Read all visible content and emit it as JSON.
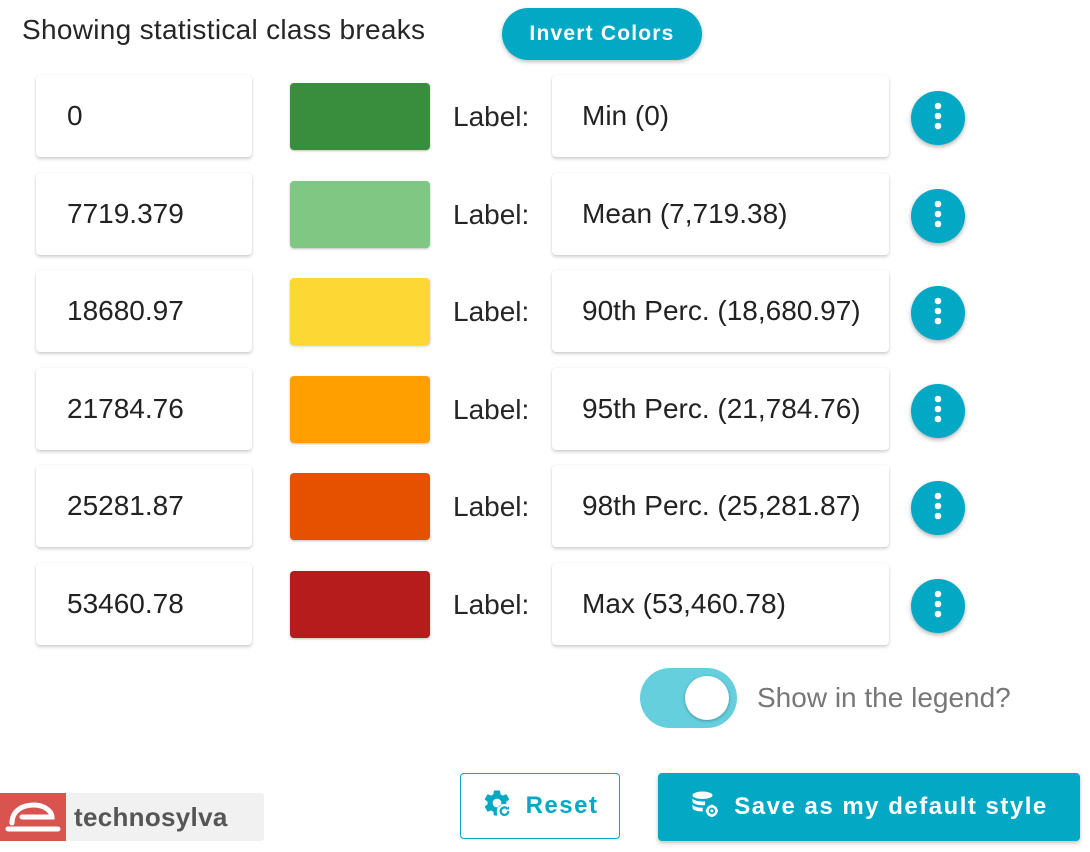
{
  "header": {
    "title": "Showing statistical class breaks",
    "invert_colors_label": "Invert Colors"
  },
  "breaks": [
    {
      "value": "0",
      "color": "#388e3c",
      "label_prefix": "Label:",
      "label": "Min (0)"
    },
    {
      "value": "7719.379",
      "color": "#81c784",
      "label_prefix": "Label:",
      "label": "Mean (7,719.38)"
    },
    {
      "value": "18680.97",
      "color": "#fdd835",
      "label_prefix": "Label:",
      "label": "90th Perc. (18,680.97)"
    },
    {
      "value": "21784.76",
      "color": "#ffa000",
      "label_prefix": "Label:",
      "label": "95th Perc. (21,784.76)"
    },
    {
      "value": "25281.87",
      "color": "#e65100",
      "label_prefix": "Label:",
      "label": "98th Perc. (25,281.87)"
    },
    {
      "value": "53460.78",
      "color": "#b71c1c",
      "label_prefix": "Label:",
      "label": "Max (53,460.78)"
    }
  ],
  "legend_toggle": {
    "label": "Show in the legend?",
    "checked": true
  },
  "footer": {
    "logo_text": "technosylva",
    "reset_label": "Reset",
    "save_label": "Save as my default style"
  },
  "colors": {
    "accent": "#03a8c4",
    "toggle_track": "#66cfde"
  },
  "icons": {
    "menu": "more-vert-icon",
    "reset": "gear-refresh-icon",
    "save": "database-gear-icon"
  }
}
